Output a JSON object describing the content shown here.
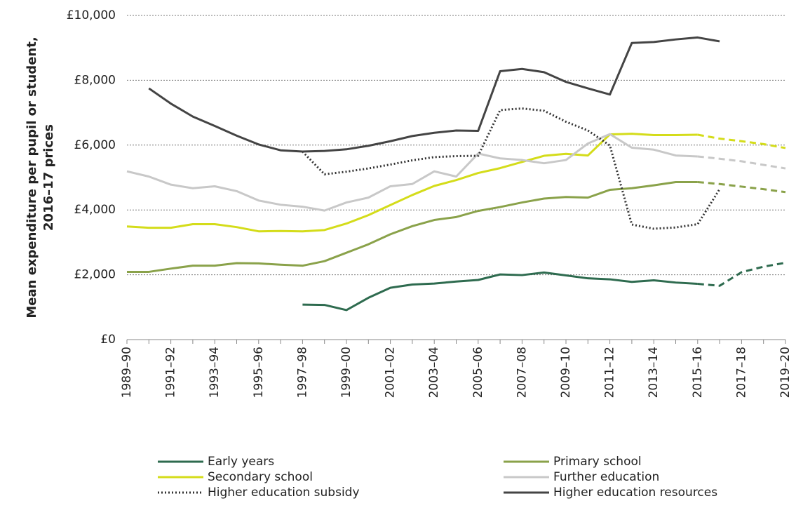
{
  "chart_data": {
    "type": "line",
    "y_label": [
      "Mean expenditure per pupil or student,",
      "2016–17 prices"
    ],
    "categories": [
      "1989–90",
      null,
      "1991–92",
      null,
      "1993–94",
      null,
      "1995–96",
      null,
      "1997–98",
      null,
      "1999–00",
      null,
      "2001–02",
      null,
      "2003–04",
      null,
      "2005–06",
      null,
      "2007–08",
      null,
      "2009–10",
      null,
      "2011–12",
      null,
      "2013–14",
      null,
      "2015–16",
      null,
      "2017–18",
      null,
      "2019–20"
    ],
    "ylim": [
      0,
      10000
    ],
    "yticks": [
      {
        "value": 0,
        "label": "£0"
      },
      {
        "value": 2000,
        "label": "£2,000"
      },
      {
        "value": 4000,
        "label": "£4,000"
      },
      {
        "value": 6000,
        "label": "£6,000"
      },
      {
        "value": 8000,
        "label": "£8,000"
      },
      {
        "value": 10000,
        "label": "£10,000"
      }
    ],
    "grid": true,
    "series": [
      {
        "name": "Early years",
        "color": "#2e6b4f",
        "style": "solid",
        "values": [
          null,
          null,
          null,
          null,
          null,
          null,
          null,
          null,
          1080,
          1070,
          910,
          1290,
          1600,
          1700,
          1730,
          1790,
          1840,
          2010,
          1990,
          2070,
          1980,
          1890,
          1860,
          1780,
          1830,
          1760,
          1720,
          null,
          null,
          null,
          null
        ],
        "projected_values": [
          null,
          null,
          null,
          null,
          null,
          null,
          null,
          null,
          null,
          null,
          null,
          null,
          null,
          null,
          null,
          null,
          null,
          null,
          null,
          null,
          null,
          null,
          null,
          null,
          null,
          null,
          1720,
          1660,
          2080,
          2250,
          2370
        ]
      },
      {
        "name": "Primary school",
        "color": "#8aa24a",
        "style": "solid",
        "values": [
          2090,
          2090,
          2190,
          2280,
          2280,
          2360,
          2350,
          2310,
          2280,
          2420,
          2680,
          2940,
          3250,
          3500,
          3690,
          3780,
          3970,
          4090,
          4230,
          4350,
          4400,
          4380,
          4620,
          4670,
          4760,
          4860,
          4860,
          null,
          null,
          null,
          null
        ],
        "projected_values": [
          null,
          null,
          null,
          null,
          null,
          null,
          null,
          null,
          null,
          null,
          null,
          null,
          null,
          null,
          null,
          null,
          null,
          null,
          null,
          null,
          null,
          null,
          null,
          null,
          null,
          null,
          4860,
          4800,
          4720,
          4640,
          4550
        ]
      },
      {
        "name": "Secondary school",
        "color": "#d4dc1a",
        "style": "solid",
        "values": [
          3490,
          3450,
          3450,
          3560,
          3560,
          3470,
          3340,
          3350,
          3340,
          3380,
          3580,
          3840,
          4150,
          4460,
          4740,
          4920,
          5140,
          5290,
          5480,
          5670,
          5730,
          5680,
          6330,
          6350,
          6310,
          6310,
          6320,
          null,
          null,
          null,
          null
        ],
        "projected_values": [
          null,
          null,
          null,
          null,
          null,
          null,
          null,
          null,
          null,
          null,
          null,
          null,
          null,
          null,
          null,
          null,
          null,
          null,
          null,
          null,
          null,
          null,
          null,
          null,
          null,
          null,
          6320,
          6200,
          6120,
          6030,
          5910
        ]
      },
      {
        "name": "Further education",
        "color": "#c8c8c8",
        "style": "solid",
        "values": [
          5190,
          5030,
          4780,
          4670,
          4730,
          4580,
          4290,
          4160,
          4100,
          3980,
          4230,
          4380,
          4730,
          4800,
          5190,
          5030,
          5740,
          5590,
          5540,
          5440,
          5540,
          6050,
          6340,
          5920,
          5860,
          5680,
          5650,
          null,
          null,
          null,
          null
        ],
        "projected_values": [
          null,
          null,
          null,
          null,
          null,
          null,
          null,
          null,
          null,
          null,
          null,
          null,
          null,
          null,
          null,
          null,
          null,
          null,
          null,
          null,
          null,
          null,
          null,
          null,
          null,
          null,
          5650,
          5580,
          5500,
          5390,
          5280
        ]
      },
      {
        "name": "Higher education subsidy",
        "color": "#333333",
        "style": "dotted",
        "values": [
          null,
          null,
          null,
          null,
          null,
          null,
          null,
          null,
          5800,
          5100,
          5180,
          5280,
          5400,
          5530,
          5630,
          5660,
          5670,
          7080,
          7130,
          7060,
          6720,
          6450,
          5990,
          3550,
          3420,
          3460,
          3560,
          4640,
          null,
          null,
          null
        ]
      },
      {
        "name": "Higher education resources",
        "color": "#444444",
        "style": "solid",
        "values": [
          null,
          7750,
          7280,
          6880,
          6590,
          6290,
          6020,
          5840,
          5800,
          5820,
          5870,
          5980,
          6120,
          6280,
          6380,
          6450,
          6440,
          8280,
          8350,
          8250,
          7950,
          7750,
          7560,
          9150,
          9180,
          9260,
          9320,
          9200,
          null,
          null,
          null
        ]
      }
    ]
  }
}
